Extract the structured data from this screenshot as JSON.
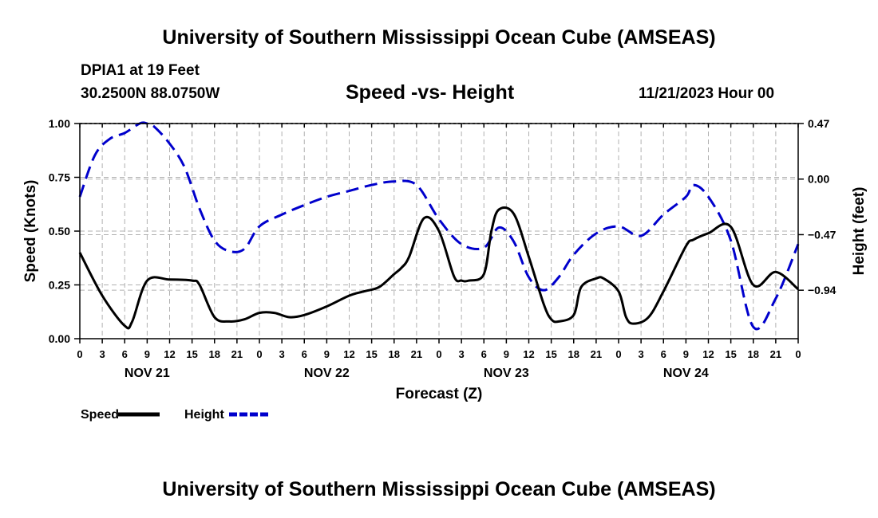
{
  "header": {
    "title": "University of Southern Mississippi Ocean Cube (AMSEAS)",
    "station": "DPIA1 at 19 Feet",
    "coords": "30.2500N  88.0750W",
    "chart_title": "Speed -vs- Height",
    "datetime": "11/21/2023 Hour 00"
  },
  "footer": {
    "title": "University of Southern Mississippi Ocean Cube (AMSEAS)"
  },
  "chart_data": {
    "type": "line",
    "title": "Speed -vs- Height",
    "xlabel": "Forecast (Z)",
    "ylabel": "Speed (Knots)",
    "y2label": "Height (feet)",
    "xlim": [
      0,
      96
    ],
    "ylim": [
      0,
      1
    ],
    "y2lim": [
      -1.35,
      0.47
    ],
    "grid": true,
    "x_ticks": [
      0,
      3,
      6,
      9,
      12,
      15,
      18,
      21,
      24,
      27,
      30,
      33,
      36,
      39,
      42,
      45,
      48,
      51,
      54,
      57,
      60,
      63,
      66,
      69,
      72,
      75,
      78,
      81,
      84,
      87,
      90,
      93,
      96
    ],
    "x_tick_labels": [
      "0",
      "3",
      "6",
      "9",
      "12",
      "15",
      "18",
      "21",
      "0",
      "3",
      "6",
      "9",
      "12",
      "15",
      "18",
      "21",
      "0",
      "3",
      "6",
      "9",
      "12",
      "15",
      "18",
      "21",
      "0",
      "3",
      "6",
      "9",
      "12",
      "15",
      "18",
      "21",
      "0"
    ],
    "day_labels": [
      {
        "hour": 9,
        "label": "NOV 21"
      },
      {
        "hour": 33,
        "label": "NOV 22"
      },
      {
        "hour": 57,
        "label": "NOV 23"
      },
      {
        "hour": 81,
        "label": "NOV 24"
      }
    ],
    "y_ticks": [
      0,
      0.25,
      0.5,
      0.75,
      1.0
    ],
    "y_tick_labels": [
      "0.00",
      "0.25",
      "0.50",
      "0.75",
      "1.00"
    ],
    "y2_ticks": [
      0.47,
      0,
      -0.47,
      -0.94
    ],
    "y2_tick_labels": [
      "0.47",
      "0.00",
      "−0.47",
      "−0.94"
    ],
    "legend": [
      {
        "name": "Speed",
        "color": "#000000",
        "style": "solid"
      },
      {
        "name": "Height",
        "color": "#0000cc",
        "style": "dashed"
      }
    ],
    "series": [
      {
        "name": "Speed",
        "axis": "left",
        "color": "#000000",
        "dash": "solid",
        "x": [
          0,
          3,
          6,
          7,
          9,
          12,
          15,
          16,
          18,
          20,
          22,
          24,
          26,
          28,
          30,
          33,
          36,
          38,
          40,
          42,
          43,
          44,
          46,
          48,
          50,
          51,
          52,
          54,
          55,
          56,
          58,
          60,
          62,
          63,
          64,
          66,
          67,
          69,
          70,
          72,
          73,
          74,
          76,
          78,
          81,
          82,
          84,
          87,
          90,
          93,
          96
        ],
        "y": [
          0.4,
          0.2,
          0.06,
          0.08,
          0.27,
          0.275,
          0.27,
          0.25,
          0.1,
          0.08,
          0.09,
          0.12,
          0.12,
          0.1,
          0.11,
          0.15,
          0.2,
          0.22,
          0.24,
          0.3,
          0.33,
          0.38,
          0.56,
          0.5,
          0.29,
          0.27,
          0.27,
          0.3,
          0.5,
          0.6,
          0.58,
          0.38,
          0.16,
          0.09,
          0.08,
          0.11,
          0.24,
          0.28,
          0.28,
          0.22,
          0.1,
          0.07,
          0.1,
          0.22,
          0.43,
          0.46,
          0.49,
          0.52,
          0.25,
          0.31,
          0.23
        ]
      },
      {
        "name": "Height",
        "axis": "right",
        "color": "#0000cc",
        "dash": "dashed",
        "x": [
          0,
          2,
          4,
          6,
          8,
          9,
          10,
          12,
          14,
          16,
          18,
          20,
          22,
          24,
          27,
          30,
          33,
          36,
          39,
          42,
          45,
          48,
          51,
          54,
          56,
          58,
          60,
          62,
          64,
          66,
          69,
          72,
          75,
          78,
          81,
          82,
          84,
          87,
          90,
          93,
          96
        ],
        "y": [
          -0.15,
          0.2,
          0.34,
          0.39,
          0.47,
          0.47,
          0.44,
          0.3,
          0.1,
          -0.25,
          -0.52,
          -0.61,
          -0.59,
          -0.4,
          -0.3,
          -0.22,
          -0.15,
          -0.1,
          -0.05,
          -0.02,
          -0.05,
          -0.34,
          -0.55,
          -0.58,
          -0.41,
          -0.53,
          -0.83,
          -0.94,
          -0.83,
          -0.64,
          -0.46,
          -0.4,
          -0.48,
          -0.3,
          -0.15,
          -0.05,
          -0.15,
          -0.52,
          -1.25,
          -1.01,
          -0.55
        ]
      }
    ]
  }
}
